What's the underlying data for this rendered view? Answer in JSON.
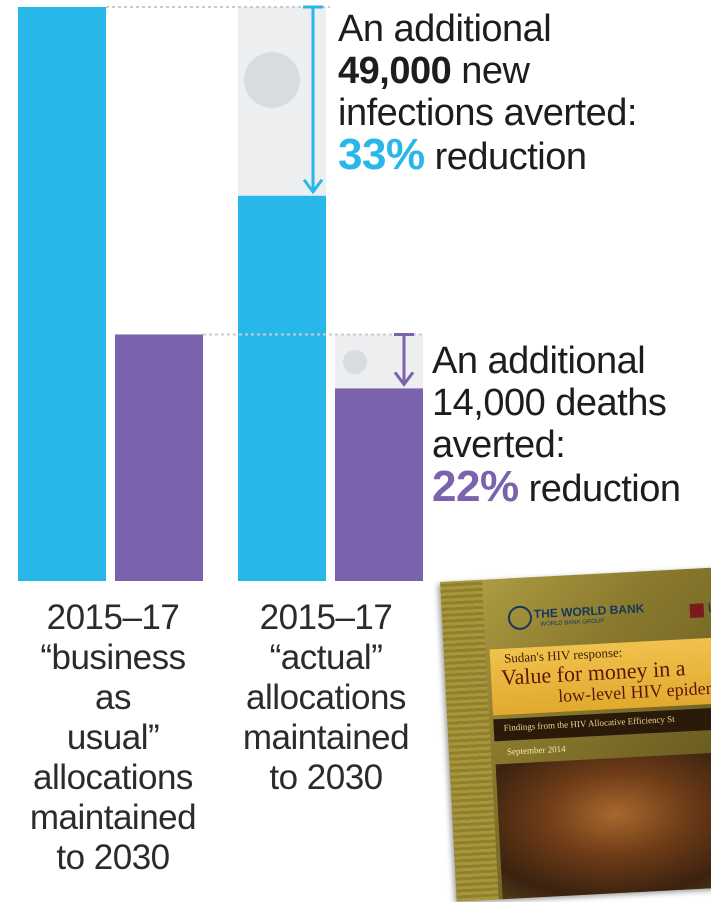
{
  "chart_data": {
    "type": "bar",
    "categories": [
      "2015–17\n“business as\nusual”\nallocations\nmaintained\nto 2030",
      "2015–17\n“actual”\nallocations\nmaintained\nto 2030"
    ],
    "series": [
      {
        "values": [
          149000,
          100000
        ]
      },
      {
        "values": [
          64000,
          50000
        ]
      }
    ],
    "ylim": [
      0,
      149000
    ],
    "colors": {
      "infections": "#27b7e8",
      "deaths": "#7a62ad",
      "ghost": "#eceef0",
      "arrow_blue": "#27b7e8",
      "arrow_purple": "#7a62ad"
    },
    "annotations": [
      {
        "line1": "An additional",
        "bold": "49,000",
        "rest": " new",
        "line3": "infections averted:",
        "pct": "33%",
        "tail": " reduction"
      },
      {
        "line1": "An additional",
        "line2": "14,000 deaths",
        "line3": "averted:",
        "pct": "22%",
        "tail": " reduction"
      }
    ]
  },
  "report_cover": {
    "publisher": "THE WORLD BANK",
    "publisher_sub": "WORLD BANK GROUP",
    "partner": "UN",
    "subtitle": "Sudan's HIV response:",
    "title_line1": "Value for money in a",
    "title_line2": "low-level HIV epidem",
    "findings": "Findings from the HIV Allocative Efficiency St",
    "date": "September 2014"
  }
}
